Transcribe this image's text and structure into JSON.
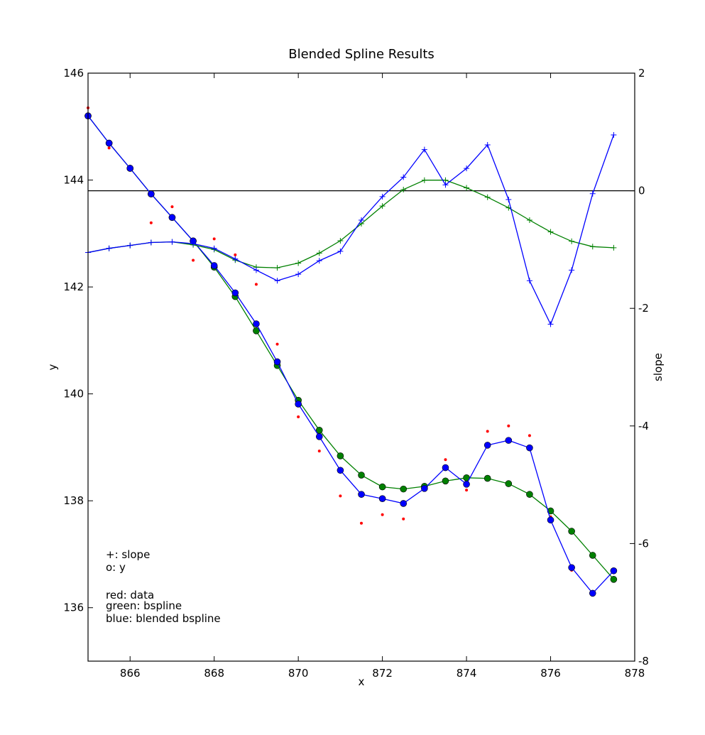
{
  "chart_data": {
    "type": "line",
    "title": "Blended Spline Results",
    "xlabel": "x",
    "ylabel": "y",
    "y2label": "slope",
    "xlim": [
      865,
      878
    ],
    "ylim": [
      135,
      146
    ],
    "y2lim": [
      -8,
      2
    ],
    "xticks": [
      "866",
      "868",
      "870",
      "872",
      "874",
      "876",
      "878"
    ],
    "yticks": [
      "136",
      "138",
      "140",
      "142",
      "144",
      "146"
    ],
    "y2ticks": [
      "-8",
      "-6",
      "-4",
      "-2",
      "0",
      "2"
    ],
    "colors": {
      "data": "#ff0000",
      "bspline": "#008000",
      "blended": "#0000ff",
      "zero_line": "#000000"
    },
    "annotations": [
      "+: slope",
      "o: y",
      "red: data",
      "green: bspline",
      "blue: blended bspline"
    ],
    "x": [
      865.0,
      865.5,
      866.0,
      866.5,
      867.0,
      867.5,
      868.0,
      868.5,
      869.0,
      869.5,
      870.0,
      870.5,
      871.0,
      871.5,
      872.0,
      872.5,
      873.0,
      873.5,
      874.0,
      874.5,
      875.0,
      875.5,
      876.0,
      876.5,
      877.0,
      877.5
    ],
    "series": [
      {
        "axis": "y",
        "marker": "dot",
        "color": "#ff0000",
        "values": [
          145.35,
          144.6,
          144.2,
          143.2,
          143.5,
          142.5,
          142.9,
          142.6,
          142.05,
          140.93,
          139.57,
          138.93,
          138.09,
          137.58,
          137.74,
          137.66,
          138.25,
          138.77,
          138.2,
          139.3,
          139.4,
          139.22,
          137.7,
          136.7,
          136.28,
          136.7
        ]
      },
      {
        "axis": "y",
        "marker": "circle",
        "color": "#008000",
        "values": [
          145.2,
          144.69,
          144.22,
          143.74,
          143.3,
          142.86,
          142.37,
          141.82,
          141.18,
          140.53,
          139.88,
          139.32,
          138.84,
          138.48,
          138.26,
          138.22,
          138.27,
          138.37,
          138.43,
          138.42,
          138.32,
          138.12,
          137.81,
          137.43,
          136.98,
          136.53
        ]
      },
      {
        "axis": "y",
        "marker": "circle",
        "color": "#0000ff",
        "values": [
          145.2,
          144.69,
          144.22,
          143.74,
          143.3,
          142.86,
          142.4,
          141.89,
          141.31,
          140.6,
          139.81,
          139.2,
          138.57,
          138.12,
          138.04,
          137.95,
          138.23,
          138.62,
          138.31,
          139.04,
          139.13,
          138.99,
          137.64,
          136.75,
          136.27,
          136.69
        ]
      },
      {
        "axis": "y2",
        "marker": "plus",
        "color": "#008000",
        "values": [
          -1.05,
          -0.98,
          -0.93,
          -0.88,
          -0.87,
          -0.92,
          -1.0,
          -1.18,
          -1.3,
          -1.31,
          -1.23,
          -1.06,
          -0.85,
          -0.56,
          -0.26,
          0.02,
          0.18,
          0.18,
          0.05,
          -0.11,
          -0.29,
          -0.5,
          -0.7,
          -0.86,
          -0.95,
          -0.97
        ]
      },
      {
        "axis": "y2",
        "marker": "plus",
        "color": "#0000ff",
        "values": [
          -1.05,
          -0.98,
          -0.93,
          -0.88,
          -0.87,
          -0.9,
          -0.98,
          -1.16,
          -1.35,
          -1.53,
          -1.42,
          -1.19,
          -1.03,
          -0.5,
          -0.1,
          0.23,
          0.7,
          0.1,
          0.38,
          0.78,
          -0.15,
          -1.53,
          -2.27,
          -1.35,
          -0.05,
          0.95
        ]
      }
    ]
  }
}
